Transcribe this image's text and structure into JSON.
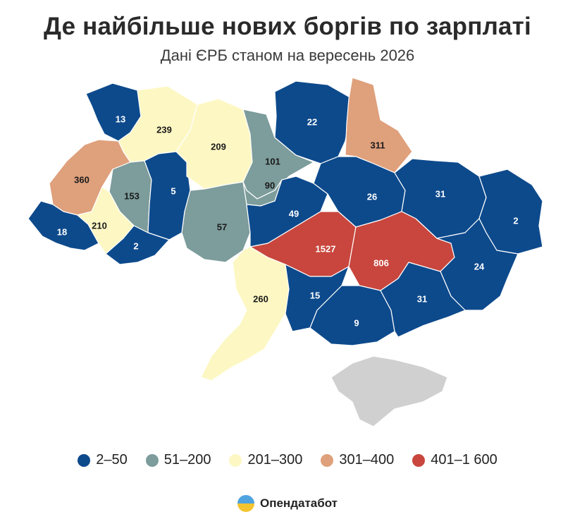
{
  "title": "Де найбільше нових боргів по зарплаті",
  "subtitle": "Дані ЄРБ станом на вересень 2026",
  "legend": [
    {
      "label": "2–50",
      "color": "#0d4a8c"
    },
    {
      "label": "51–200",
      "color": "#7d9c9c"
    },
    {
      "label": "201–300",
      "color": "#fdf7c3"
    },
    {
      "label": "301–400",
      "color": "#dfa07c"
    },
    {
      "label": "401–1 600",
      "color": "#c8463d"
    }
  ],
  "regions": [
    {
      "value": "13",
      "category": 0
    },
    {
      "value": "239",
      "category": 2
    },
    {
      "value": "360",
      "category": 3
    },
    {
      "value": "153",
      "category": 1
    },
    {
      "value": "5",
      "category": 0
    },
    {
      "value": "209",
      "category": 2
    },
    {
      "value": "101",
      "category": 1
    },
    {
      "value": "90",
      "category": 1
    },
    {
      "value": "22",
      "category": 0
    },
    {
      "value": "311",
      "category": 3
    },
    {
      "value": "18",
      "category": 0
    },
    {
      "value": "210",
      "category": 2
    },
    {
      "value": "2",
      "category": 0
    },
    {
      "value": "57",
      "category": 1
    },
    {
      "value": "49",
      "category": 0
    },
    {
      "value": "26",
      "category": 0
    },
    {
      "value": "31",
      "category": 0
    },
    {
      "value": "2",
      "category": 0
    },
    {
      "value": "1527",
      "category": 4
    },
    {
      "value": "806",
      "category": 4
    },
    {
      "value": "24",
      "category": 0
    },
    {
      "value": "260",
      "category": 2
    },
    {
      "value": "15",
      "category": 0
    },
    {
      "value": "9",
      "category": 0
    },
    {
      "value": "31",
      "category": 0
    },
    {
      "value": "",
      "category": 5
    }
  ],
  "no_data_color": "#d0d0d0",
  "brand": {
    "name": "Опендатабот",
    "icon": "opendatabot-logo-icon"
  }
}
